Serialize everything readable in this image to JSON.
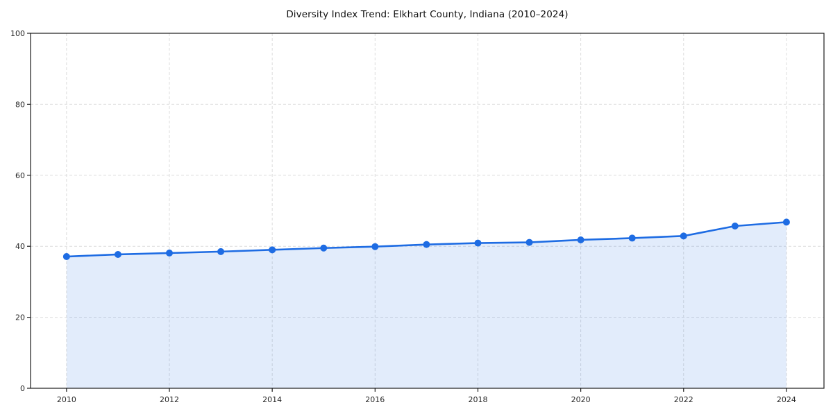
{
  "chart": {
    "title": "Diversity Index Trend: Elkhart County, Indiana (2010–2024)"
  },
  "chart_data": {
    "type": "line",
    "title": "Diversity Index Trend: Elkhart County, Indiana (2010–2024)",
    "xlabel": "",
    "ylabel": "",
    "x": [
      2010,
      2011,
      2012,
      2013,
      2014,
      2015,
      2016,
      2017,
      2018,
      2019,
      2020,
      2021,
      2022,
      2023,
      2024
    ],
    "series": [
      {
        "name": "Diversity Index",
        "values": [
          37.1,
          37.7,
          38.1,
          38.5,
          39.0,
          39.5,
          39.9,
          40.5,
          40.9,
          41.1,
          41.8,
          42.3,
          42.9,
          45.7,
          46.8
        ]
      }
    ],
    "xlim": [
      2009.3,
      2024.73
    ],
    "ylim": [
      0,
      100
    ],
    "xticks": [
      2010,
      2012,
      2014,
      2016,
      2018,
      2020,
      2022,
      2024
    ],
    "yticks": [
      0,
      20,
      40,
      60,
      80,
      100
    ],
    "grid": true,
    "grid_style": "dashed",
    "legend_position": "none",
    "area_fill": true,
    "marker": "circle",
    "colors": {
      "line": "#1e6ce3",
      "marker": "#1e6ce3",
      "area_fill": "rgba(30,108,227,0.13)",
      "grid": "#dcdcdc",
      "spine": "#1a1a1a",
      "tick_text": "#262626",
      "background": "#ffffff"
    }
  }
}
